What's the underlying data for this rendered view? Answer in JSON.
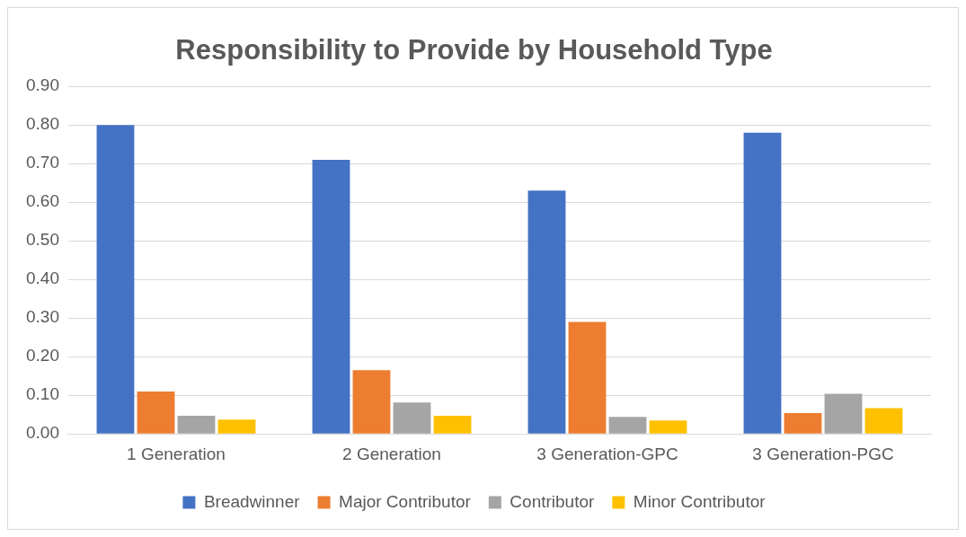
{
  "chart_data": {
    "type": "bar",
    "title": "Responsibility to Provide by Household Type",
    "categories": [
      "1 Generation",
      "2 Generation",
      "3 Generation-GPC",
      "3 Generation-PGC"
    ],
    "series": [
      {
        "name": "Breadwinner",
        "color": "#4472c4",
        "values": [
          0.8,
          0.71,
          0.63,
          0.78
        ]
      },
      {
        "name": "Major Contributor",
        "color": "#ed7d31",
        "values": [
          0.11,
          0.165,
          0.29,
          0.054
        ]
      },
      {
        "name": "Contributor",
        "color": "#a5a5a5",
        "values": [
          0.047,
          0.081,
          0.044,
          0.104
        ]
      },
      {
        "name": "Minor Contributor",
        "color": "#ffc000",
        "values": [
          0.037,
          0.047,
          0.035,
          0.067
        ]
      }
    ],
    "ylim": [
      0,
      0.9
    ],
    "yticks": [
      {
        "value": 0,
        "label": "0.00"
      },
      {
        "value": 0.1,
        "label": "0.10"
      },
      {
        "value": 0.2,
        "label": "0.20"
      },
      {
        "value": 0.3,
        "label": "0.30"
      },
      {
        "value": 0.4,
        "label": "0.40"
      },
      {
        "value": 0.5,
        "label": "0.50"
      },
      {
        "value": 0.6,
        "label": "0.60"
      },
      {
        "value": 0.7,
        "label": "0.70"
      },
      {
        "value": 0.8,
        "label": "0.80"
      },
      {
        "value": 0.9,
        "label": "0.90"
      }
    ],
    "grid": "y",
    "legend": "bottom"
  }
}
